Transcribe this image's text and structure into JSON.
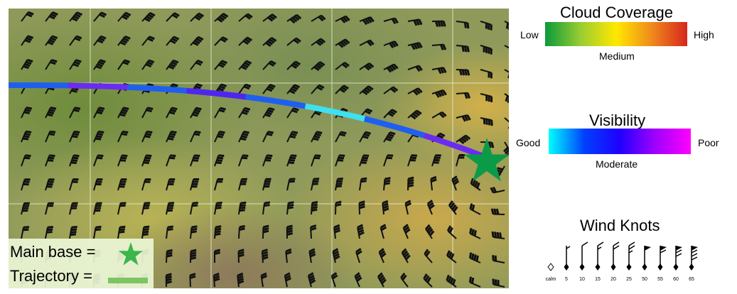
{
  "legend": {
    "cloud": {
      "title": "Cloud Coverage",
      "low": "Low",
      "medium": "Medium",
      "high": "High",
      "colors": [
        "#0a9a3a",
        "#9acd32",
        "#ffe800",
        "#f08a1c",
        "#d7261e"
      ]
    },
    "visibility": {
      "title": "Visibility",
      "good": "Good",
      "moderate": "Moderate",
      "poor": "Poor",
      "colors": [
        "#00ffff",
        "#0040ff",
        "#2000ff",
        "#a000ff",
        "#ff00ff"
      ]
    },
    "wind": {
      "title": "Wind Knots",
      "labels": [
        "calm",
        "5",
        "10",
        "15",
        "20",
        "25",
        "50",
        "55",
        "60",
        "65"
      ]
    }
  },
  "key": {
    "main_base_label": "Main base =",
    "trajectory_label": "Trajectory =",
    "star_color": "#3cb54a",
    "trajectory_color": "#7cc464"
  },
  "map": {
    "base_marker_color": "#0a9a48",
    "trajectory_segment_colors": [
      "#1f5ff0",
      "#6a2cf0",
      "#1f5ff0",
      "#4f26f0",
      "#1f5ff0",
      "#3fe0f0",
      "#1f5ff0",
      "#6a2cf0"
    ]
  }
}
